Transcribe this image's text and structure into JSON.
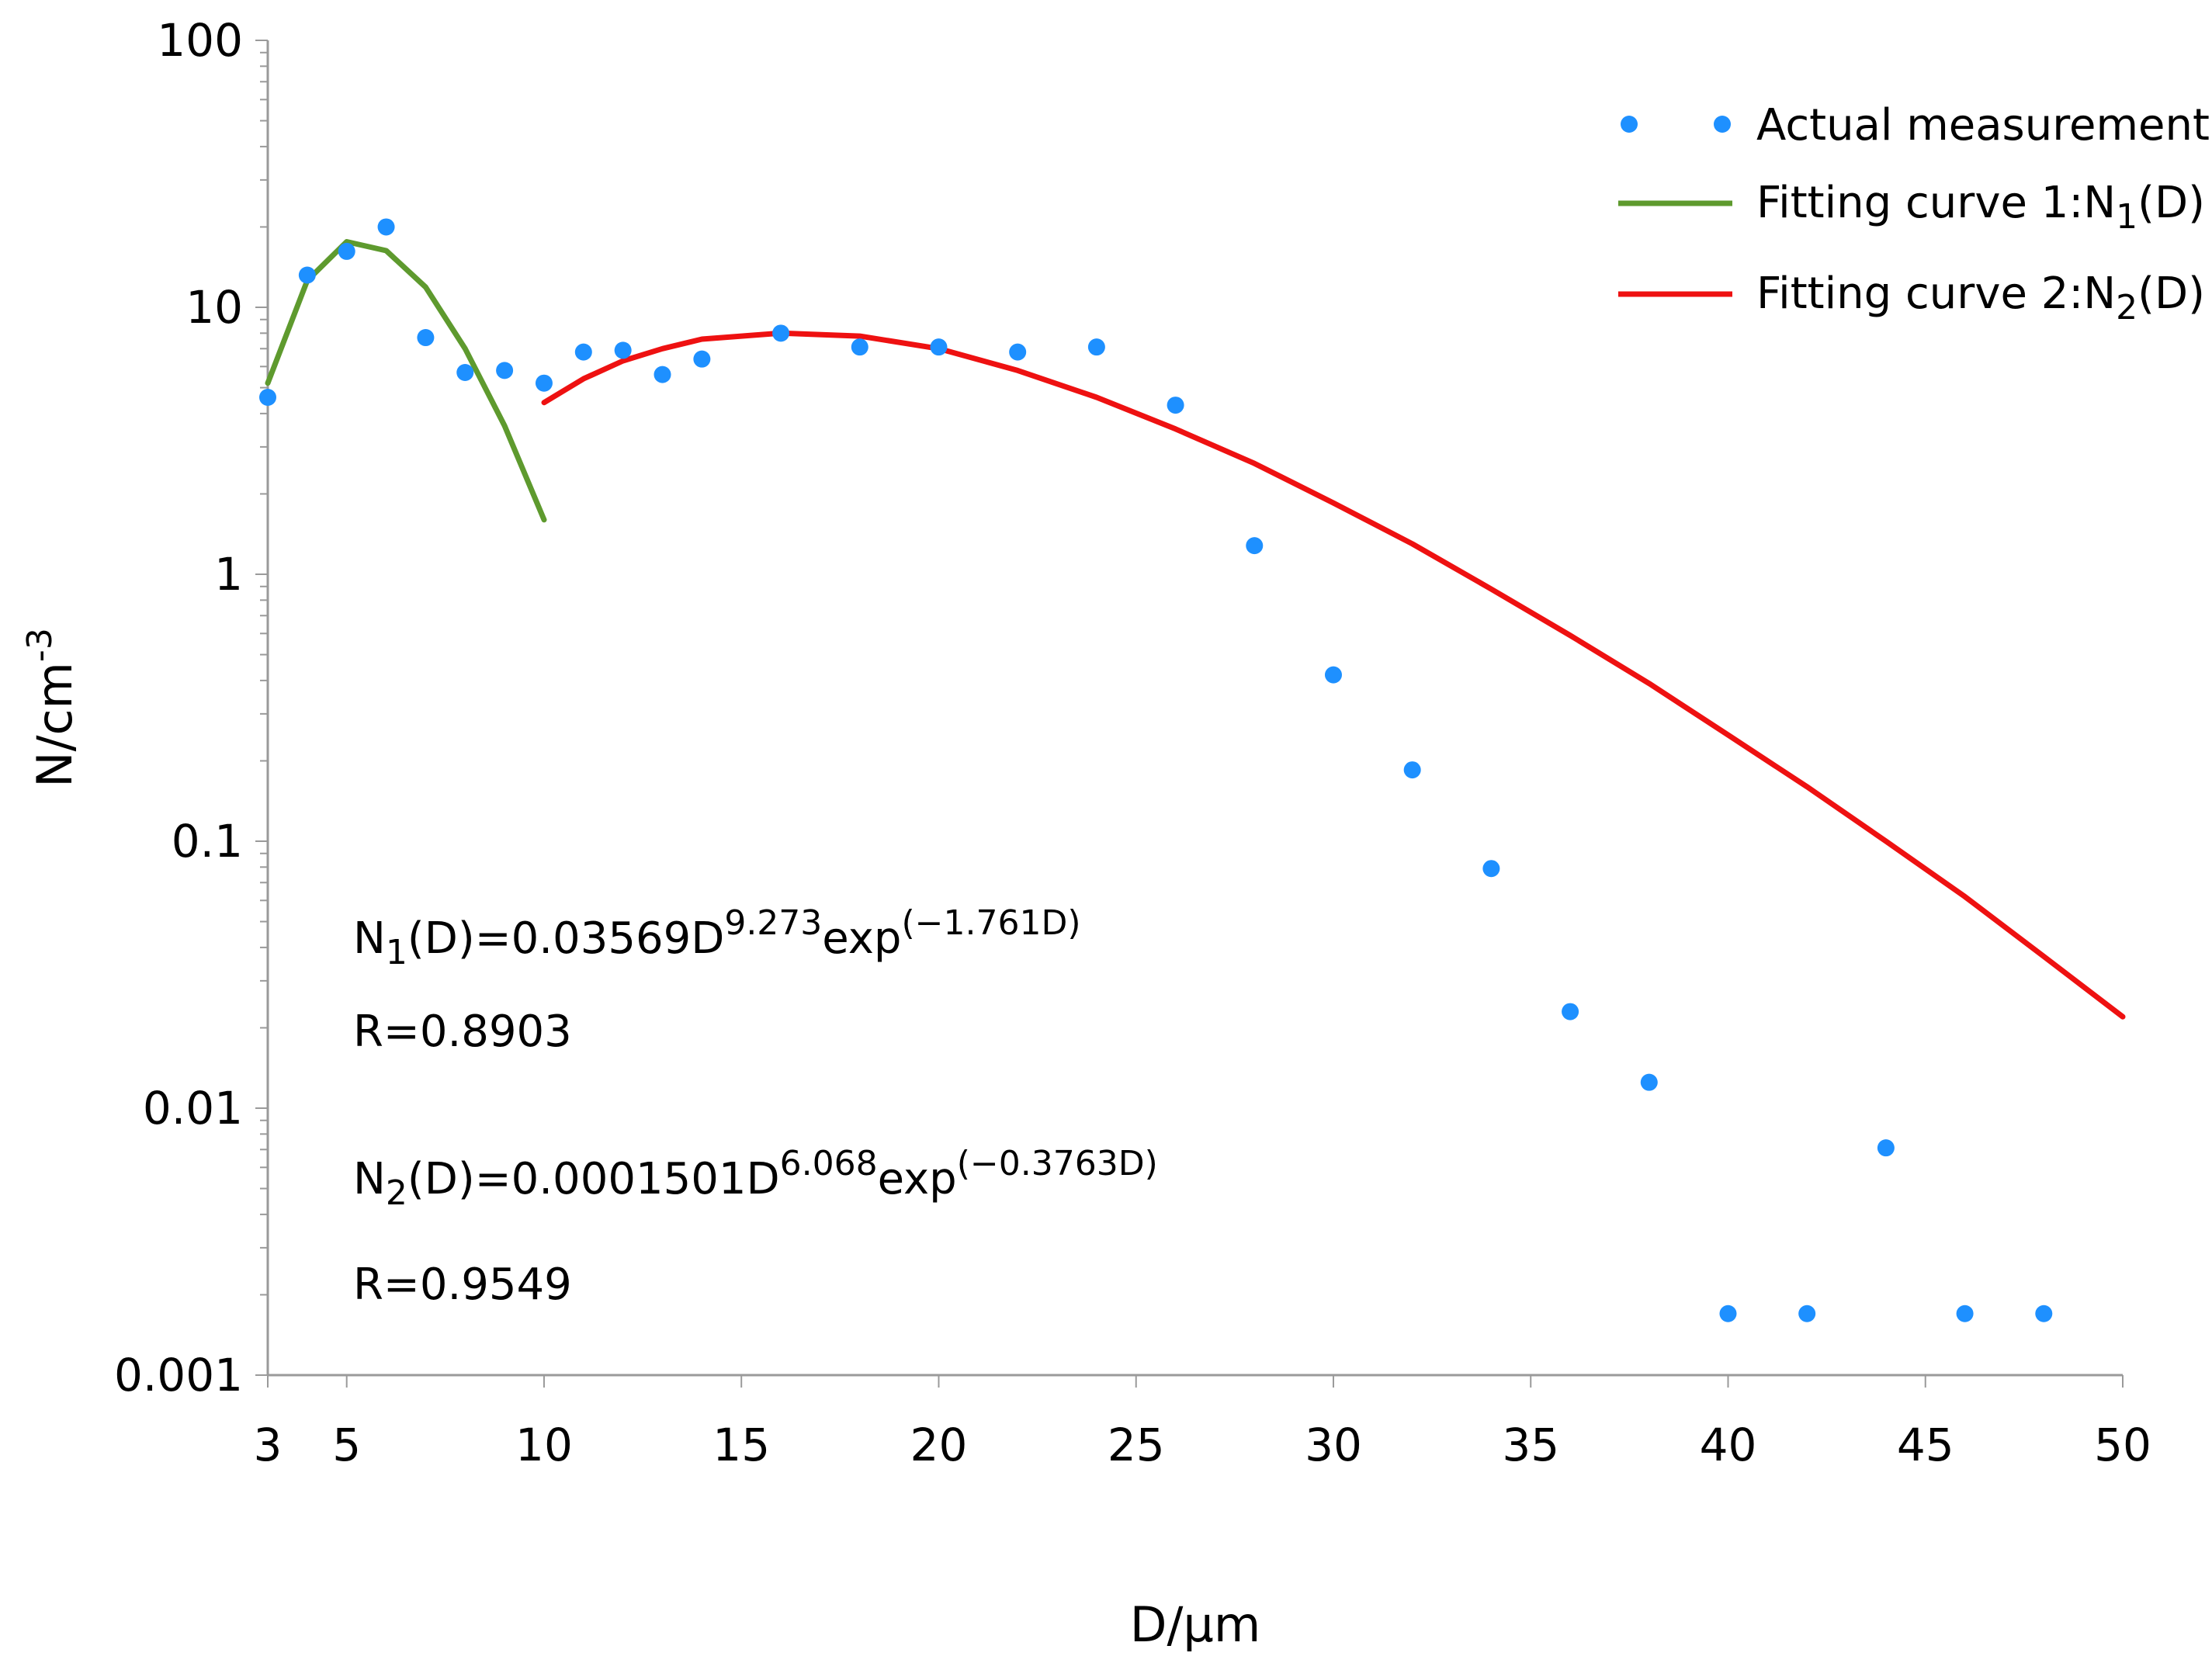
{
  "chart_data": {
    "type": "scatter",
    "xlabel": "D/μm",
    "ylabel": {
      "base": "N/cm",
      "sup": "-3"
    },
    "xlim": [
      3,
      50
    ],
    "ylim": [
      0.001,
      100
    ],
    "yscale": "log",
    "x_ticks": [
      3,
      5,
      10,
      15,
      20,
      25,
      30,
      35,
      40,
      45,
      50
    ],
    "y_ticks": [
      {
        "value": 100,
        "label": "100"
      },
      {
        "value": 10,
        "label": "10"
      },
      {
        "value": 1,
        "label": "1"
      },
      {
        "value": 0.1,
        "label": "0.1"
      },
      {
        "value": 0.01,
        "label": "0.01"
      },
      {
        "value": 0.001,
        "label": "0.001"
      }
    ],
    "colors": {
      "measurement": "#1e90ff",
      "curve1": "#5e9a2e",
      "curve2": "#ee1111",
      "axis": "#9a9a9a"
    },
    "series": [
      {
        "name": "Actual measurement",
        "kind": "points",
        "points": [
          [
            3,
            4.6
          ],
          [
            4,
            13.2
          ],
          [
            5,
            16.2
          ],
          [
            6,
            20
          ],
          [
            7,
            7.7
          ],
          [
            8,
            5.7
          ],
          [
            9,
            5.8
          ],
          [
            10,
            5.2
          ],
          [
            11,
            6.8
          ],
          [
            12,
            6.9
          ],
          [
            13,
            5.6
          ],
          [
            14,
            6.4
          ],
          [
            16,
            8.0
          ],
          [
            18,
            7.1
          ],
          [
            20,
            7.1
          ],
          [
            22,
            6.8
          ],
          [
            24,
            7.1
          ],
          [
            26,
            4.3
          ],
          [
            28,
            1.28
          ],
          [
            30,
            0.42
          ],
          [
            32,
            0.185
          ],
          [
            34,
            0.079
          ],
          [
            36,
            0.023
          ],
          [
            38,
            0.0125
          ],
          [
            40,
            0.0017
          ],
          [
            42,
            0.0017
          ],
          [
            44,
            0.0071
          ],
          [
            46,
            0.0017
          ],
          [
            48,
            0.0017
          ]
        ]
      },
      {
        "name": "Fitting curve 1:N₁(D)",
        "legend": {
          "prefix": "Fitting curve 1:N",
          "sub": "1",
          "suffix": "(D)"
        },
        "kind": "line",
        "points": [
          [
            3,
            5.2
          ],
          [
            4,
            12.6
          ],
          [
            5,
            17.6
          ],
          [
            6,
            16.3
          ],
          [
            7,
            11.9
          ],
          [
            8,
            7.0
          ],
          [
            9,
            3.6
          ],
          [
            10,
            1.6
          ]
        ]
      },
      {
        "name": "Fitting curve 2:N₂(D)",
        "legend": {
          "prefix": "Fitting curve 2:N",
          "sub": "2",
          "suffix": "(D)"
        },
        "kind": "line",
        "points": [
          [
            10,
            4.4
          ],
          [
            11,
            5.4
          ],
          [
            12,
            6.3
          ],
          [
            13,
            7.0
          ],
          [
            14,
            7.6
          ],
          [
            16,
            8.0
          ],
          [
            18,
            7.8
          ],
          [
            20,
            7.0
          ],
          [
            22,
            5.8
          ],
          [
            24,
            4.6
          ],
          [
            26,
            3.5
          ],
          [
            28,
            2.6
          ],
          [
            30,
            1.85
          ],
          [
            32,
            1.3
          ],
          [
            34,
            0.88
          ],
          [
            36,
            0.59
          ],
          [
            38,
            0.39
          ],
          [
            40,
            0.25
          ],
          [
            42,
            0.16
          ],
          [
            44,
            0.1
          ],
          [
            46,
            0.062
          ],
          [
            48,
            0.037
          ],
          [
            50,
            0.022
          ]
        ]
      }
    ],
    "annotations": [
      {
        "id": "eq1",
        "parts": {
          "a": "N",
          "sub": "1",
          "b": "(D)=0.03569D",
          "sup1": "9.273",
          "c": "exp",
          "sup2": "(−1.761D)"
        }
      },
      {
        "id": "r1",
        "text": "R=0.8903"
      },
      {
        "id": "eq2",
        "parts": {
          "a": "N",
          "sub": "2",
          "b": "(D)=0.0001501D",
          "sup1": "6.068",
          "c": "exp",
          "sup2": "(−0.3763D)"
        }
      },
      {
        "id": "r2",
        "text": "R=0.9549"
      }
    ]
  }
}
